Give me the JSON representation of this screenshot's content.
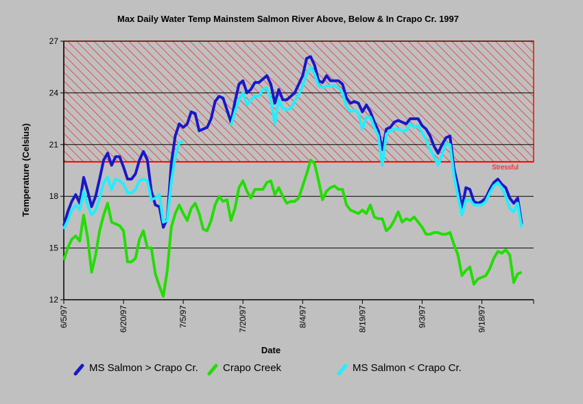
{
  "chart_data": {
    "type": "line",
    "title": "Max Daily Water Temp Mainstem Salmon River Above, Below & In Crapo Cr. 1997",
    "x_label": "Date",
    "y_label": "Temperature (Celsius)",
    "x": [
      "6/5/97",
      "6/6/97",
      "6/7/97",
      "6/8/97",
      "6/9/97",
      "6/10/97",
      "6/11/97",
      "6/12/97",
      "6/13/97",
      "6/14/97",
      "6/15/97",
      "6/16/97",
      "6/17/97",
      "6/18/97",
      "6/19/97",
      "6/20/97",
      "6/21/97",
      "6/22/97",
      "6/23/97",
      "6/24/97",
      "6/25/97",
      "6/26/97",
      "6/27/97",
      "6/28/97",
      "6/29/97",
      "6/30/97",
      "7/1/97",
      "7/2/97",
      "7/3/97",
      "7/4/97",
      "7/5/97",
      "7/6/97",
      "7/7/97",
      "7/8/97",
      "7/9/97",
      "7/10/97",
      "7/11/97",
      "7/12/97",
      "7/13/97",
      "7/14/97",
      "7/15/97",
      "7/16/97",
      "7/17/97",
      "7/18/97",
      "7/19/97",
      "7/20/97",
      "7/21/97",
      "7/22/97",
      "7/23/97",
      "7/24/97",
      "7/25/97",
      "7/26/97",
      "7/27/97",
      "7/28/97",
      "7/29/97",
      "7/30/97",
      "7/31/97",
      "8/1/97",
      "8/2/97",
      "8/3/97",
      "8/4/97",
      "8/5/97",
      "8/6/97",
      "8/7/97",
      "8/8/97",
      "8/9/97",
      "8/10/97",
      "8/11/97",
      "8/12/97",
      "8/13/97",
      "8/14/97",
      "8/15/97",
      "8/16/97",
      "8/17/97",
      "8/18/97",
      "8/19/97",
      "8/20/97",
      "8/21/97",
      "8/22/97",
      "8/23/97",
      "8/24/97",
      "8/25/97",
      "8/26/97",
      "8/27/97",
      "8/28/97",
      "8/29/97",
      "8/30/97",
      "8/31/97",
      "9/1/97",
      "9/2/97",
      "9/3/97",
      "9/4/97",
      "9/5/97",
      "9/6/97",
      "9/7/97",
      "9/8/97",
      "9/9/97",
      "9/10/97",
      "9/11/97",
      "9/12/97",
      "9/13/97",
      "9/14/97",
      "9/15/97",
      "9/16/97",
      "9/17/97",
      "9/18/97",
      "9/19/97",
      "9/20/97",
      "9/21/97",
      "9/22/97",
      "9/23/97",
      "9/24/97",
      "9/25/97",
      "9/26/97",
      "9/27/97",
      "9/28/97"
    ],
    "series": [
      {
        "name": "MS Salmon > Crapo Cr.",
        "color": "#1818c8",
        "values": [
          16.3,
          17.1,
          17.7,
          18.1,
          17.6,
          19.1,
          18.3,
          17.4,
          18.0,
          19.0,
          20.1,
          20.5,
          19.8,
          20.3,
          20.3,
          19.7,
          19.0,
          19.0,
          19.3,
          20.1,
          20.6,
          20.1,
          18.3,
          17.5,
          17.4,
          16.2,
          16.7,
          19.9,
          21.5,
          22.2,
          22.0,
          22.2,
          22.9,
          22.8,
          21.8,
          21.9,
          22.0,
          22.5,
          23.5,
          23.8,
          23.7,
          23.0,
          22.3,
          23.5,
          24.5,
          24.7,
          24.0,
          24.2,
          24.6,
          24.6,
          24.8,
          25.0,
          24.5,
          23.4,
          24.2,
          23.6,
          23.6,
          23.8,
          24.0,
          24.5,
          25.0,
          26.0,
          26.1,
          25.6,
          24.7,
          24.6,
          25.0,
          24.7,
          24.7,
          24.7,
          24.5,
          23.7,
          23.4,
          23.5,
          23.4,
          22.9,
          23.3,
          22.9,
          22.3,
          21.8,
          20.7,
          21.9,
          22.0,
          22.3,
          22.4,
          22.3,
          22.2,
          22.5,
          22.5,
          22.5,
          22.1,
          21.9,
          21.5,
          20.9,
          20.5,
          21.0,
          21.4,
          21.5,
          19.6,
          18.6,
          17.3,
          18.5,
          18.4,
          17.7,
          17.6,
          17.7,
          17.9,
          18.4,
          18.8,
          19.0,
          18.7,
          18.5,
          17.9,
          17.6,
          17.9,
          16.4
        ]
      },
      {
        "name": "Crapo Creek",
        "color": "#22dd00",
        "values": [
          14.3,
          15.0,
          15.5,
          15.7,
          15.4,
          16.9,
          15.6,
          13.6,
          14.6,
          16.0,
          16.9,
          17.6,
          16.5,
          16.4,
          16.3,
          16.0,
          14.2,
          14.2,
          14.4,
          15.5,
          16.0,
          15.0,
          15.0,
          13.5,
          12.8,
          12.2,
          13.7,
          16.2,
          17.0,
          17.5,
          17.0,
          16.6,
          17.3,
          17.6,
          17.0,
          16.1,
          16.0,
          16.6,
          17.5,
          18.0,
          17.7,
          17.8,
          16.6,
          17.3,
          18.5,
          18.9,
          18.3,
          17.9,
          18.4,
          18.4,
          18.4,
          18.8,
          18.9,
          18.1,
          18.5,
          18.0,
          17.6,
          17.7,
          17.7,
          17.9,
          18.6,
          19.3,
          20.1,
          19.9,
          18.9,
          17.8,
          18.3,
          18.5,
          18.6,
          18.4,
          18.4,
          17.5,
          17.2,
          17.1,
          17.0,
          17.2,
          17.0,
          17.5,
          16.8,
          16.7,
          16.7,
          16.0,
          16.2,
          16.6,
          17.1,
          16.5,
          16.7,
          16.6,
          16.8,
          16.5,
          16.2,
          15.8,
          15.8,
          15.9,
          15.9,
          15.8,
          15.8,
          15.9,
          15.2,
          14.6,
          13.4,
          13.7,
          13.9,
          12.9,
          13.2,
          13.3,
          13.4,
          13.8,
          14.4,
          14.8,
          14.7,
          14.9,
          14.6,
          13.0,
          13.5,
          13.6
        ]
      },
      {
        "name": "MS Salmon < Crapo Cr.",
        "color": "#22eeff",
        "values": [
          16.1,
          16.6,
          17.2,
          17.5,
          17.2,
          18.3,
          17.5,
          16.9,
          17.2,
          17.9,
          18.8,
          19.1,
          18.4,
          19.0,
          18.9,
          18.7,
          18.2,
          18.2,
          18.4,
          18.9,
          19.0,
          18.9,
          17.8,
          17.9,
          18.1,
          16.5,
          16.6,
          18.8,
          20.3,
          21.1,
          21.2,
          null,
          null,
          null,
          null,
          null,
          null,
          null,
          null,
          null,
          null,
          null,
          22.1,
          22.9,
          23.6,
          24.0,
          23.3,
          23.6,
          23.8,
          23.8,
          24.2,
          24.3,
          23.6,
          22.2,
          23.6,
          23.1,
          23.0,
          23.1,
          23.5,
          23.9,
          24.4,
          25.1,
          25.5,
          25.1,
          24.4,
          24.3,
          24.4,
          24.4,
          24.4,
          24.3,
          24.0,
          23.2,
          22.9,
          23.0,
          22.8,
          21.9,
          22.6,
          22.6,
          22.0,
          21.5,
          19.8,
          21.6,
          21.8,
          21.9,
          21.9,
          21.8,
          21.8,
          22.2,
          22.0,
          22.1,
          21.7,
          21.3,
          20.7,
          20.3,
          19.8,
          20.4,
          21.1,
          21.0,
          19.2,
          18.0,
          16.9,
          17.8,
          17.8,
          17.5,
          17.5,
          17.5,
          17.7,
          18.2,
          18.6,
          18.8,
          18.5,
          18.0,
          17.3,
          17.1,
          17.6,
          16.2
        ]
      }
    ],
    "xlim": [
      "6/5/97",
      "10/1/97"
    ],
    "xticks": [
      "6/5/97",
      "6/20/97",
      "7/5/97",
      "7/20/97",
      "8/4/97",
      "8/19/97",
      "9/3/97",
      "9/18/97"
    ],
    "ylim": [
      12,
      27
    ],
    "yticks": [
      12,
      15,
      18,
      21,
      24,
      27
    ],
    "grid": true,
    "threshold": {
      "value": 20,
      "label": "Stressful",
      "color": "#ff0000"
    },
    "legend": "bottom"
  }
}
